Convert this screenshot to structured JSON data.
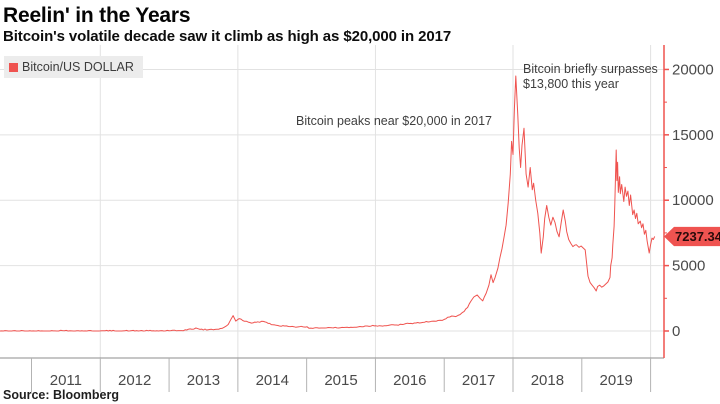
{
  "header": {
    "title": "Reelin' in the Years",
    "subtitle": "Bitcoin's volatile decade saw it climb as high as $20,000 in 2017"
  },
  "legend": {
    "label": "Bitcoin/US DOLLAR",
    "swatch_color": "#ef5350"
  },
  "annotations": [
    {
      "text": "Bitcoin peaks near $20,000 in 2017"
    },
    {
      "line1": "Bitcoin briefly surpasses",
      "line2": "$13,800 this year"
    }
  ],
  "price_badge": {
    "label": "7237.34",
    "value": 7237.34,
    "bg": "#ef5350",
    "border": "#b93230",
    "text_color": "#2b0b0b"
  },
  "source": "Source:  Bloomberg",
  "chart_data": {
    "type": "line",
    "title": "Reelin' in the Years",
    "subtitle": "Bitcoin's volatile decade saw it climb as high as $20,000 in 2017",
    "legend_position": "top-left",
    "grid": true,
    "xlim": [
      2010.542,
      2020.195
    ],
    "ylim": [
      -2065,
      21870
    ],
    "y_ticks": [
      {
        "value": 0,
        "label": "0"
      },
      {
        "value": 5000,
        "label": "5000"
      },
      {
        "value": 10000,
        "label": "10000"
      },
      {
        "value": 15000,
        "label": "15000"
      },
      {
        "value": 20000,
        "label": "20000"
      }
    ],
    "y_minor_ticks": [
      2500,
      7500,
      12500,
      17500
    ],
    "x_boundary_ticks": [
      2011,
      2012,
      2013,
      2014,
      2015,
      2016,
      2017,
      2018,
      2019,
      2020
    ],
    "x_year_labels": [
      "2011",
      "2012",
      "2013",
      "2014",
      "2015",
      "2016",
      "2017",
      "2018",
      "2019"
    ],
    "v_gridline_years": [
      2012,
      2014,
      2016,
      2018,
      2020
    ],
    "h_gridline_values": [
      0,
      5000,
      10000,
      15000,
      20000
    ],
    "axis_colors": {
      "y_axis": "#ef534f",
      "x_axis": "#8c8c8c",
      "x_tick": "#b3b3b3",
      "grid": "#e2e2e2",
      "label": "#4a4a4a"
    },
    "last_price": 7237.34,
    "series": [
      {
        "name": "Bitcoin/US DOLLAR",
        "color": "#ef534f",
        "points": [
          [
            2010.542,
            0.1
          ],
          [
            2010.83,
            0.3
          ],
          [
            2011.0,
            0.8
          ],
          [
            2011.2,
            1
          ],
          [
            2011.34,
            9
          ],
          [
            2011.45,
            28
          ],
          [
            2011.56,
            14
          ],
          [
            2011.78,
            6
          ],
          [
            2012.0,
            5
          ],
          [
            2012.21,
            5
          ],
          [
            2012.43,
            7
          ],
          [
            2012.65,
            11
          ],
          [
            2012.87,
            13
          ],
          [
            2013.0,
            13
          ],
          [
            2013.16,
            30
          ],
          [
            2013.33,
            140
          ],
          [
            2013.39,
            230
          ],
          [
            2013.45,
            120
          ],
          [
            2013.57,
            100
          ],
          [
            2013.67,
            120
          ],
          [
            2013.77,
            200
          ],
          [
            2013.86,
            500
          ],
          [
            2013.9,
            900
          ],
          [
            2013.93,
            1180
          ],
          [
            2013.97,
            760
          ],
          [
            2014.02,
            950
          ],
          [
            2014.07,
            800
          ],
          [
            2014.15,
            680
          ],
          [
            2014.22,
            620
          ],
          [
            2014.29,
            700
          ],
          [
            2014.37,
            730
          ],
          [
            2014.44,
            580
          ],
          [
            2014.51,
            480
          ],
          [
            2014.58,
            420
          ],
          [
            2014.68,
            380
          ],
          [
            2014.79,
            350
          ],
          [
            2014.89,
            320
          ],
          [
            2014.98,
            300
          ],
          [
            2015.06,
            220
          ],
          [
            2015.15,
            250
          ],
          [
            2015.24,
            230
          ],
          [
            2015.34,
            260
          ],
          [
            2015.44,
            240
          ],
          [
            2015.54,
            270
          ],
          [
            2015.64,
            285
          ],
          [
            2015.75,
            310
          ],
          [
            2015.85,
            380
          ],
          [
            2015.91,
            350
          ],
          [
            2015.96,
            430
          ],
          [
            2016.08,
            390
          ],
          [
            2016.18,
            420
          ],
          [
            2016.28,
            455
          ],
          [
            2016.39,
            500
          ],
          [
            2016.49,
            575
          ],
          [
            2016.59,
            610
          ],
          [
            2016.69,
            660
          ],
          [
            2016.79,
            700
          ],
          [
            2016.88,
            740
          ],
          [
            2016.94,
            820
          ],
          [
            2017.0,
            890
          ],
          [
            2017.05,
            1050
          ],
          [
            2017.11,
            1150
          ],
          [
            2017.17,
            1100
          ],
          [
            2017.23,
            1250
          ],
          [
            2017.29,
            1500
          ],
          [
            2017.34,
            1800
          ],
          [
            2017.39,
            2300
          ],
          [
            2017.43,
            2600
          ],
          [
            2017.48,
            2750
          ],
          [
            2017.52,
            2500
          ],
          [
            2017.56,
            2300
          ],
          [
            2017.61,
            2900
          ],
          [
            2017.65,
            3500
          ],
          [
            2017.68,
            4300
          ],
          [
            2017.71,
            3700
          ],
          [
            2017.74,
            4100
          ],
          [
            2017.78,
            4800
          ],
          [
            2017.81,
            5600
          ],
          [
            2017.84,
            6300
          ],
          [
            2017.87,
            7200
          ],
          [
            2017.9,
            8100
          ],
          [
            2017.93,
            9800
          ],
          [
            2017.96,
            12000
          ],
          [
            2017.98,
            14500
          ],
          [
            2018.0,
            13500
          ],
          [
            2018.02,
            17000
          ],
          [
            2018.04,
            19500
          ],
          [
            2018.07,
            16500
          ],
          [
            2018.09,
            14000
          ],
          [
            2018.11,
            12500
          ],
          [
            2018.13,
            14200
          ],
          [
            2018.16,
            15500
          ],
          [
            2018.19,
            12000
          ],
          [
            2018.22,
            11000
          ],
          [
            2018.25,
            12500
          ],
          [
            2018.28,
            10800
          ],
          [
            2018.3,
            11300
          ],
          [
            2018.33,
            10000
          ],
          [
            2018.36,
            9000
          ],
          [
            2018.39,
            7500
          ],
          [
            2018.41,
            5960
          ],
          [
            2018.44,
            7200
          ],
          [
            2018.46,
            8600
          ],
          [
            2018.49,
            9600
          ],
          [
            2018.52,
            8700
          ],
          [
            2018.55,
            8100
          ],
          [
            2018.58,
            8700
          ],
          [
            2018.61,
            8300
          ],
          [
            2018.64,
            7600
          ],
          [
            2018.67,
            7200
          ],
          [
            2018.7,
            8300
          ],
          [
            2018.73,
            9250
          ],
          [
            2018.76,
            8400
          ],
          [
            2018.78,
            7600
          ],
          [
            2018.81,
            7000
          ],
          [
            2018.84,
            6700
          ],
          [
            2018.87,
            6450
          ],
          [
            2018.92,
            6600
          ],
          [
            2018.96,
            6400
          ],
          [
            2018.99,
            6500
          ],
          [
            2019.02,
            6350
          ],
          [
            2019.05,
            6200
          ],
          [
            2019.07,
            5200
          ],
          [
            2019.09,
            4200
          ],
          [
            2019.12,
            3700
          ],
          [
            2019.15,
            3500
          ],
          [
            2019.18,
            3300
          ],
          [
            2019.21,
            3060
          ],
          [
            2019.23,
            3400
          ],
          [
            2019.26,
            3500
          ],
          [
            2019.29,
            3350
          ],
          [
            2019.32,
            3450
          ],
          [
            2019.35,
            3600
          ],
          [
            2019.38,
            3750
          ],
          [
            2019.41,
            4100
          ],
          [
            2019.42,
            5000
          ],
          [
            2019.44,
            5600
          ],
          [
            2019.45,
            6600
          ],
          [
            2019.47,
            8000
          ],
          [
            2019.48,
            9700
          ],
          [
            2019.49,
            11800
          ],
          [
            2019.5,
            13840
          ],
          [
            2019.51,
            11500
          ],
          [
            2019.52,
            12900
          ],
          [
            2019.53,
            10600
          ],
          [
            2019.55,
            11800
          ],
          [
            2019.56,
            10500
          ],
          [
            2019.58,
            11200
          ],
          [
            2019.61,
            9900
          ],
          [
            2019.63,
            11000
          ],
          [
            2019.65,
            10300
          ],
          [
            2019.67,
            10700
          ],
          [
            2019.69,
            9600
          ],
          [
            2019.71,
            10400
          ],
          [
            2019.74,
            8900
          ],
          [
            2019.76,
            9250
          ],
          [
            2019.78,
            8600
          ],
          [
            2019.8,
            9000
          ],
          [
            2019.82,
            8200
          ],
          [
            2019.85,
            8400
          ],
          [
            2019.87,
            7900
          ],
          [
            2019.89,
            8200
          ],
          [
            2019.91,
            7400
          ],
          [
            2019.93,
            7700
          ],
          [
            2019.95,
            6900
          ],
          [
            2019.98,
            5965
          ],
          [
            2020.0,
            6600
          ],
          [
            2020.02,
            7100
          ],
          [
            2020.04,
            7000
          ],
          [
            2020.06,
            7237.34
          ]
        ]
      }
    ]
  }
}
